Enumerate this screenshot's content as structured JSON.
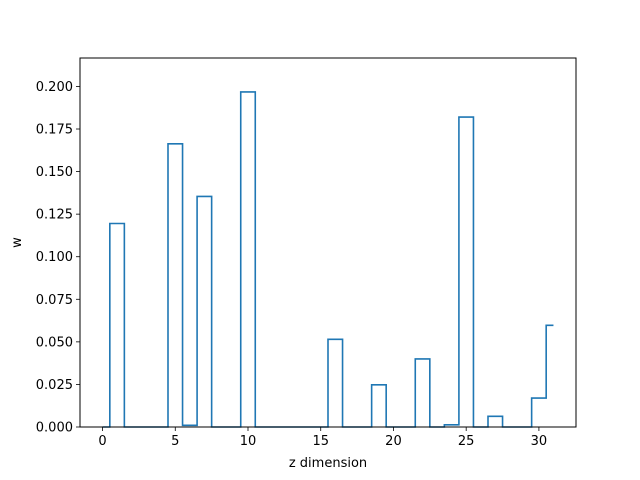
{
  "chart_data": {
    "type": "line",
    "style": "step-mid",
    "title": "",
    "xlabel": "z dimension",
    "ylabel": "w",
    "xlim": [
      -1.55,
      32.55
    ],
    "ylim": [
      0,
      0.2167
    ],
    "xticks": [
      0,
      5,
      10,
      15,
      20,
      25,
      30
    ],
    "yticks": [
      0.0,
      0.025,
      0.05,
      0.075,
      0.1,
      0.125,
      0.15,
      0.175,
      0.2
    ],
    "ytick_labels": [
      "0.000",
      "0.025",
      "0.050",
      "0.075",
      "0.100",
      "0.125",
      "0.150",
      "0.175",
      "0.200"
    ],
    "grid": false,
    "line_color": "#1f77b4",
    "series": [
      {
        "x": [
          0,
          1,
          2,
          3,
          4,
          5,
          6,
          7,
          8,
          9,
          10,
          11,
          12,
          13,
          14,
          15,
          16,
          17,
          18,
          19,
          20,
          21,
          22,
          23,
          24,
          25,
          26,
          27,
          28,
          29,
          30,
          31
        ],
        "values": [
          0.0,
          0.1195,
          0.0,
          0.0,
          0.0,
          0.1663,
          0.001,
          0.1354,
          0.0,
          0.0,
          0.1968,
          0.0,
          0.0,
          0.0,
          0.0,
          0.0,
          0.0515,
          0.0,
          0.0,
          0.0248,
          0.0,
          0.0,
          0.04,
          0.0,
          0.0013,
          0.182,
          0.0,
          0.0063,
          0.0,
          0.0,
          0.017,
          0.0597
        ]
      }
    ]
  }
}
